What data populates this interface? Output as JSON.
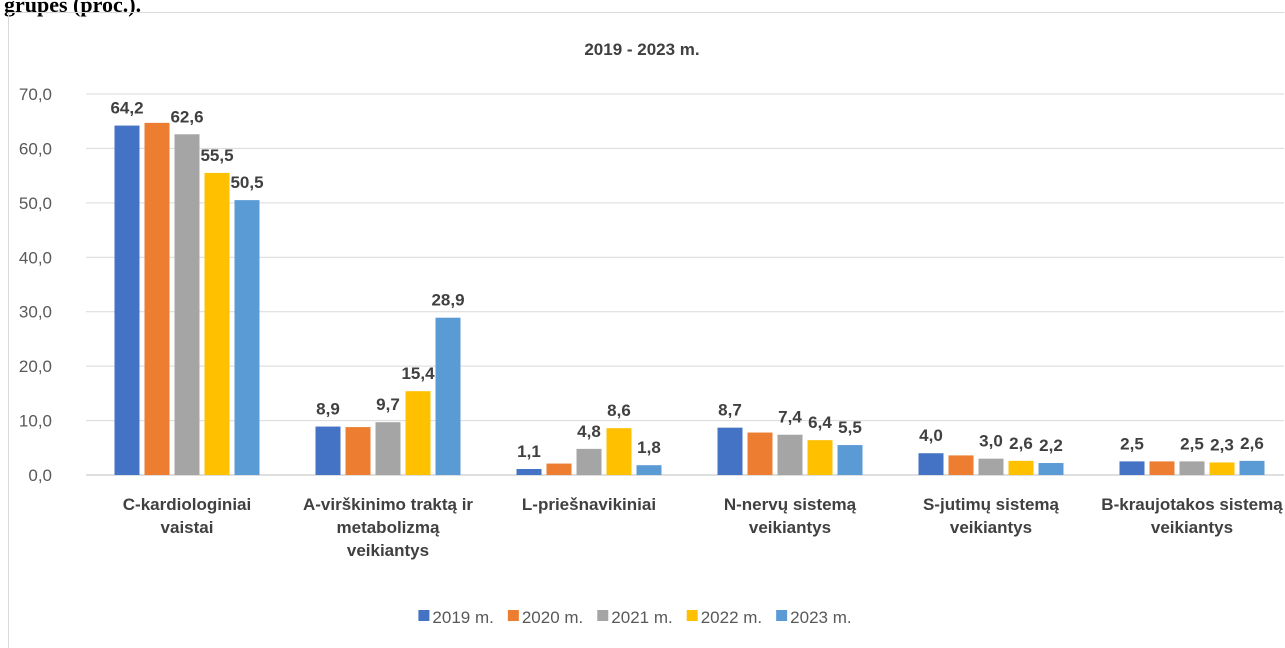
{
  "page_heading": "grupes (proc.).",
  "chart_data": {
    "type": "bar",
    "title": "2019 - 2023 m.",
    "categories": [
      "C-kardiologiniai vaistai",
      "A-virškinimo traktą ir metabolizmą veikiantys",
      "L-priešnavikiniai",
      "N-nervų sistemą veikiantys",
      "S-jutimų sistemą veikiantys",
      "B-kraujotakos sistemą veikiantys"
    ],
    "series": [
      {
        "name": "2019 m.",
        "color": "#4472c4",
        "values": [
          64.2,
          8.9,
          1.1,
          8.7,
          4.0,
          2.5
        ],
        "value_labels": [
          "64,2",
          "8,9",
          "1,1",
          "8,7",
          "4,0",
          "2,5"
        ]
      },
      {
        "name": "2020 m.",
        "color": "#ed7d31",
        "values": [
          64.7,
          8.8,
          2.1,
          7.8,
          3.6,
          2.5
        ]
      },
      {
        "name": "2021 m.",
        "color": "#a5a5a5",
        "values": [
          62.6,
          9.7,
          4.8,
          7.4,
          3.0,
          2.5
        ],
        "value_labels": [
          "62,6",
          "9,7",
          "4,8",
          "7,4",
          "3,0",
          "2,5"
        ]
      },
      {
        "name": "2022 m.",
        "color": "#ffc000",
        "values": [
          55.5,
          15.4,
          8.6,
          6.4,
          2.6,
          2.3
        ],
        "value_labels": [
          "55,5",
          "15,4",
          "8,6",
          "6,4",
          "2,6",
          "2,3"
        ]
      },
      {
        "name": "2023 m.",
        "color": "#5b9bd5",
        "values": [
          50.5,
          28.9,
          1.8,
          5.5,
          2.2,
          2.6
        ],
        "value_labels": [
          "50,5",
          "28,9",
          "1,8",
          "5,5",
          "2,2",
          "2,6"
        ]
      }
    ],
    "ylim": [
      0,
      70
    ],
    "yticks": [
      {
        "value": 0,
        "label": "0,0"
      },
      {
        "value": 10,
        "label": "10,0"
      },
      {
        "value": 20,
        "label": "20,0"
      },
      {
        "value": 30,
        "label": "30,0"
      },
      {
        "value": 40,
        "label": "40,0"
      },
      {
        "value": 50,
        "label": "50,0"
      },
      {
        "value": 60,
        "label": "60,0"
      },
      {
        "value": 70,
        "label": "70,0"
      }
    ],
    "grid": true,
    "legend": "bottom"
  }
}
